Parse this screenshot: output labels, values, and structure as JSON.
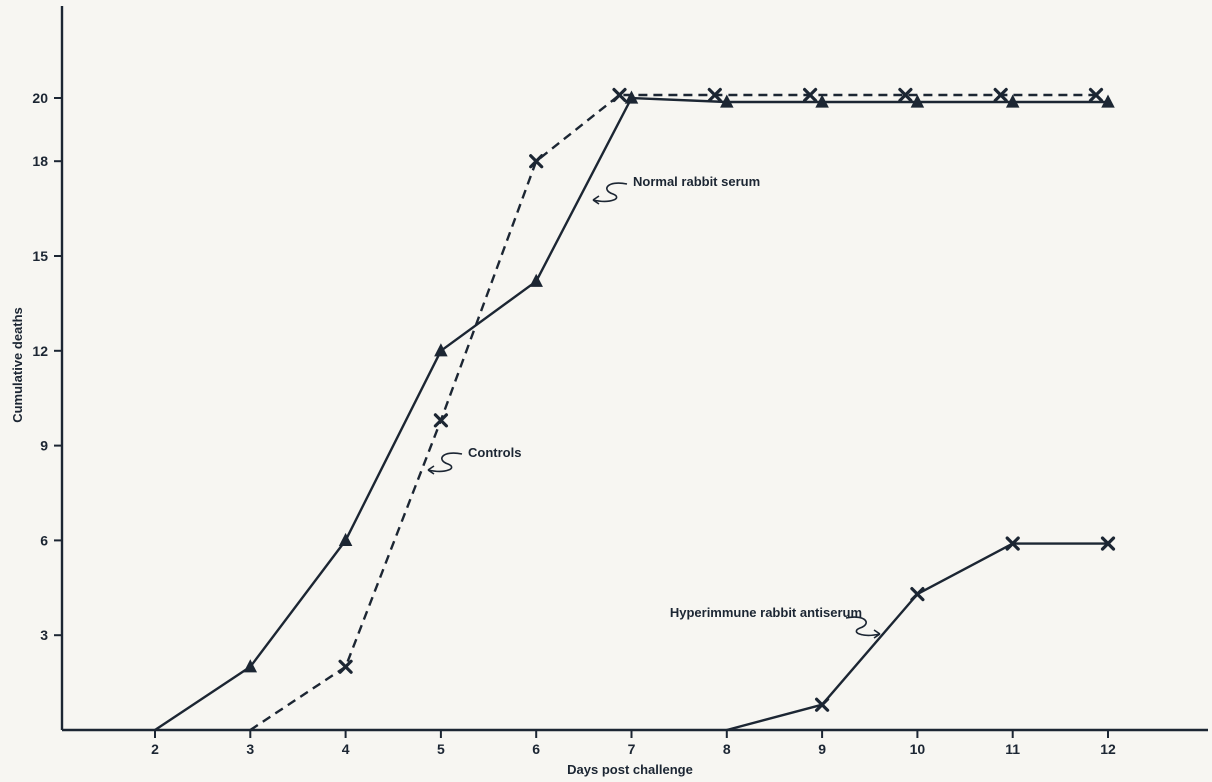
{
  "chart_data": {
    "type": "line",
    "title": "",
    "xlabel": "Days post challenge",
    "ylabel": "Cumulative deaths",
    "x_ticks": [
      2,
      3,
      4,
      5,
      6,
      7,
      8,
      9,
      10,
      11,
      12
    ],
    "y_ticks": [
      3,
      6,
      9,
      12,
      15,
      18,
      20
    ],
    "xlim": [
      1,
      13
    ],
    "ylim": [
      0,
      20
    ],
    "grid": false,
    "series": [
      {
        "label": "Normal rabbit serum",
        "marker": "triangle",
        "linestyle": "solid",
        "points": [
          [
            2,
            0
          ],
          [
            3,
            2
          ],
          [
            4,
            6
          ],
          [
            5,
            12
          ],
          [
            6,
            14.2
          ],
          [
            7,
            20
          ],
          [
            8,
            20
          ],
          [
            9,
            20
          ],
          [
            10,
            20
          ],
          [
            11,
            20
          ],
          [
            12,
            20
          ]
        ]
      },
      {
        "label": "Controls",
        "marker": "x",
        "linestyle": "dashed",
        "points": [
          [
            3,
            0
          ],
          [
            4,
            2
          ],
          [
            5,
            9.8
          ],
          [
            6,
            18
          ],
          [
            7,
            20
          ],
          [
            8,
            20
          ],
          [
            9,
            20
          ],
          [
            10,
            20
          ],
          [
            11,
            20
          ],
          [
            12,
            20
          ]
        ]
      },
      {
        "label": "Hyperimmune rabbit antiserum",
        "marker": "x",
        "linestyle": "solid",
        "points": [
          [
            8,
            0
          ],
          [
            9,
            0.8
          ],
          [
            10,
            4.3
          ],
          [
            11,
            5.9
          ],
          [
            12,
            5.9
          ]
        ]
      }
    ]
  }
}
